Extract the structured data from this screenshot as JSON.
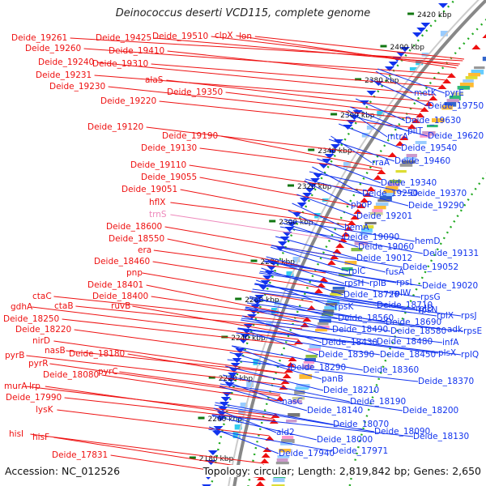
{
  "title": "Deinococcus deserti VCD115, complete genome",
  "footer": {
    "accession": "Accession: NC_012526",
    "summary": "Topology: circular; Length: 2,819,842 bp; Genes: 2,650"
  },
  "colors": {
    "forward": "#ee1111",
    "reverse": "#1133ee",
    "rna": "#ee88bb",
    "backbone": "#888888",
    "dots": "#22aa22",
    "ticks": "#117711"
  },
  "ticks": [
    {
      "label": "2420 kbp"
    },
    {
      "label": "2400 kbp"
    },
    {
      "label": "2380 kbp"
    },
    {
      "label": "2360 kbp"
    },
    {
      "label": "2340 kbp"
    },
    {
      "label": "2320 kbp"
    },
    {
      "label": "2300 kbp"
    },
    {
      "label": "2280 kbp"
    },
    {
      "label": "2260 kbp"
    },
    {
      "label": "2240 kbp"
    },
    {
      "label": "2220 kbp"
    },
    {
      "label": "2200 kbp"
    },
    {
      "label": "2180 kbp"
    }
  ],
  "left_labels": [
    {
      "text": "Deide_19261"
    },
    {
      "text": "Deide_19425"
    },
    {
      "text": "Deide_19510"
    },
    {
      "text": "clpX"
    },
    {
      "text": "lon"
    },
    {
      "text": "Deide_19260"
    },
    {
      "text": "Deide_19410"
    },
    {
      "text": "Deide_19240"
    },
    {
      "text": "Deide_19310"
    },
    {
      "text": "Deide_19231"
    },
    {
      "text": "alaS"
    },
    {
      "text": "Deide_19230"
    },
    {
      "text": "Deide_19350"
    },
    {
      "text": "Deide_19220"
    },
    {
      "text": "Deide_19120"
    },
    {
      "text": "Deide_19190"
    },
    {
      "text": "Deide_19130"
    },
    {
      "text": "Deide_19110"
    },
    {
      "text": "Deide_19055"
    },
    {
      "text": "Deide_19051"
    },
    {
      "text": "hflX"
    },
    {
      "text": "trnS",
      "rna": true
    },
    {
      "text": "Deide_18600"
    },
    {
      "text": "Deide_18550"
    },
    {
      "text": "era"
    },
    {
      "text": "Deide_18460"
    },
    {
      "text": "pnp"
    },
    {
      "text": "Deide_18401"
    },
    {
      "text": "Deide_18400"
    },
    {
      "text": "ctaC"
    },
    {
      "text": "ruvB"
    },
    {
      "text": "gdhA"
    },
    {
      "text": "ctaB"
    },
    {
      "text": "Deide_18250"
    },
    {
      "text": "Deide_18220"
    },
    {
      "text": "nirD"
    },
    {
      "text": "nasB"
    },
    {
      "text": "Deide_18180"
    },
    {
      "text": "pyrB"
    },
    {
      "text": "pyrR"
    },
    {
      "text": "pyrC"
    },
    {
      "text": "Deide_18080"
    },
    {
      "text": "murA"
    },
    {
      "text": "lrp"
    },
    {
      "text": "Deide_17990"
    },
    {
      "text": "lysK"
    },
    {
      "text": "hisI"
    },
    {
      "text": "hisF"
    },
    {
      "text": "Deide_17831"
    }
  ],
  "right_labels": [
    {
      "text": "metK"
    },
    {
      "text": "pyrE"
    },
    {
      "text": "Deide_19750"
    },
    {
      "text": "Deide_19630"
    },
    {
      "text": "pilT"
    },
    {
      "text": "mtrA"
    },
    {
      "text": "Deide_19620"
    },
    {
      "text": "Deide_19540"
    },
    {
      "text": "rraA"
    },
    {
      "text": "Deide_19460"
    },
    {
      "text": "Deide_19340"
    },
    {
      "text": "Deide_19250"
    },
    {
      "text": "Deide_19370"
    },
    {
      "text": "phoP"
    },
    {
      "text": "Deide_19290"
    },
    {
      "text": "Deide_19201"
    },
    {
      "text": "hemA"
    },
    {
      "text": "Deide_19090"
    },
    {
      "text": "hemD"
    },
    {
      "text": "Deide_19060"
    },
    {
      "text": "Deide_19131"
    },
    {
      "text": "Deide_19012"
    },
    {
      "text": "rplC"
    },
    {
      "text": "fusA"
    },
    {
      "text": "Deide_19052"
    },
    {
      "text": "rpsH"
    },
    {
      "text": "rplB"
    },
    {
      "text": "rpsL"
    },
    {
      "text": "Deide_19020"
    },
    {
      "text": "Deide_18720"
    },
    {
      "text": "rplW"
    },
    {
      "text": "rpsG"
    },
    {
      "text": "rpsK"
    },
    {
      "text": "Deide_18710"
    },
    {
      "text": "rplD"
    },
    {
      "text": "rpsN"
    },
    {
      "text": "Deide_18560"
    },
    {
      "text": "rplX"
    },
    {
      "text": "rpsJ"
    },
    {
      "text": "Deide_18490"
    },
    {
      "text": "Deide_18690"
    },
    {
      "text": "adk"
    },
    {
      "text": "rpsE"
    },
    {
      "text": "Deide_18580"
    },
    {
      "text": "Deide_18430"
    },
    {
      "text": "Deide_18480"
    },
    {
      "text": "infA"
    },
    {
      "text": "Deide_18390"
    },
    {
      "text": "Deide_18450"
    },
    {
      "text": "plsX"
    },
    {
      "text": "rplQ"
    },
    {
      "text": "Deide_18290"
    },
    {
      "text": "Deide_18360"
    },
    {
      "text": "panB"
    },
    {
      "text": "Deide_18370"
    },
    {
      "text": "Deide_18210"
    },
    {
      "text": "Deide_18190"
    },
    {
      "text": "nasC"
    },
    {
      "text": "Deide_18140"
    },
    {
      "text": "Deide_18200"
    },
    {
      "text": "Deide_18070"
    },
    {
      "text": "ald2"
    },
    {
      "text": "Deide_18090"
    },
    {
      "text": "Deide_18130"
    },
    {
      "text": "Deide_18000"
    },
    {
      "text": "Deide_17940"
    },
    {
      "text": "Deide_17971"
    }
  ]
}
